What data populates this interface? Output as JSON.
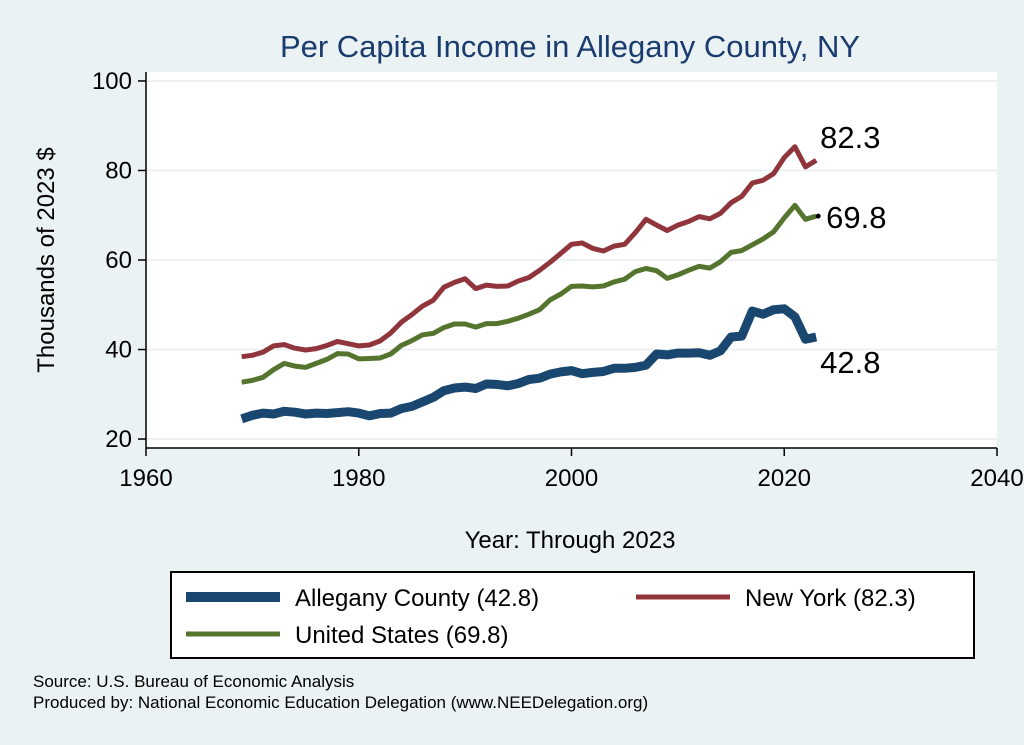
{
  "chart_data": {
    "type": "line",
    "title": "Per Capita Income in Allegany County, NY",
    "xlabel": "Year: Through 2023",
    "ylabel": "Thousands of 2023 $",
    "xlim": [
      1960,
      2040
    ],
    "ylim": [
      18,
      102
    ],
    "x_ticks": [
      1960,
      1980,
      2000,
      2020,
      2040
    ],
    "y_ticks": [
      20,
      40,
      60,
      80,
      100
    ],
    "grid": "horizontal",
    "legend_position": "bottom",
    "x": [
      1969,
      1970,
      1971,
      1972,
      1973,
      1974,
      1975,
      1976,
      1977,
      1978,
      1979,
      1980,
      1981,
      1982,
      1983,
      1984,
      1985,
      1986,
      1987,
      1988,
      1989,
      1990,
      1991,
      1992,
      1993,
      1994,
      1995,
      1996,
      1997,
      1998,
      1999,
      2000,
      2001,
      2002,
      2003,
      2004,
      2005,
      2006,
      2007,
      2008,
      2009,
      2010,
      2011,
      2012,
      2013,
      2014,
      2015,
      2016,
      2017,
      2018,
      2019,
      2020,
      2021,
      2022,
      2023
    ],
    "series": [
      {
        "name": "Allegany County (42.8)",
        "color": "#1a476f",
        "end_label": "42.8",
        "values": [
          24.5,
          25.3,
          25.8,
          25.6,
          26.2,
          26.0,
          25.6,
          25.8,
          25.7,
          25.9,
          26.1,
          25.8,
          25.2,
          25.7,
          25.8,
          26.8,
          27.3,
          28.3,
          29.3,
          30.8,
          31.4,
          31.6,
          31.3,
          32.3,
          32.2,
          31.9,
          32.4,
          33.3,
          33.6,
          34.5,
          35.0,
          35.3,
          34.6,
          34.9,
          35.1,
          35.8,
          35.8,
          36.0,
          36.5,
          39.0,
          38.8,
          39.2,
          39.2,
          39.3,
          38.7,
          39.7,
          42.8,
          43.0,
          48.6,
          47.9,
          48.9,
          49.1,
          47.3,
          42.3,
          42.8
        ]
      },
      {
        "name": "New York (82.3)",
        "color": "#90353b",
        "end_label": "82.3",
        "values": [
          38.4,
          38.7,
          39.4,
          40.8,
          41.1,
          40.3,
          39.9,
          40.2,
          40.9,
          41.8,
          41.3,
          40.8,
          41.0,
          41.9,
          43.7,
          46.1,
          47.8,
          49.7,
          51.0,
          53.9,
          55.0,
          55.8,
          53.6,
          54.4,
          54.1,
          54.2,
          55.3,
          56.1,
          57.7,
          59.5,
          61.5,
          63.5,
          63.8,
          62.6,
          62.0,
          63.1,
          63.5,
          66.1,
          69.1,
          67.8,
          66.6,
          67.8,
          68.6,
          69.7,
          69.2,
          70.4,
          72.8,
          74.2,
          77.2,
          77.8,
          79.3,
          82.9,
          85.3,
          80.8,
          82.3
        ]
      },
      {
        "name": "United States (69.8)",
        "color": "#55752f",
        "end_label": "69.8",
        "values": [
          32.7,
          33.1,
          33.8,
          35.5,
          36.9,
          36.3,
          36.0,
          36.9,
          37.8,
          39.1,
          39.0,
          37.9,
          38.0,
          38.1,
          39.0,
          40.9,
          42.0,
          43.3,
          43.6,
          44.9,
          45.7,
          45.7,
          45.0,
          45.8,
          45.8,
          46.3,
          47.0,
          47.9,
          48.9,
          51.1,
          52.4,
          54.1,
          54.2,
          54.0,
          54.2,
          55.1,
          55.7,
          57.4,
          58.1,
          57.6,
          55.9,
          56.7,
          57.7,
          58.6,
          58.2,
          59.6,
          61.7,
          62.1,
          63.4,
          64.7,
          66.3,
          69.4,
          72.2,
          69.1,
          69.8
        ]
      }
    ]
  },
  "legend": {
    "items": [
      {
        "label": "Allegany County (42.8)",
        "color": "#1a476f"
      },
      {
        "label": "New York (82.3)",
        "color": "#90353b"
      },
      {
        "label": "United States (69.8)",
        "color": "#55752f"
      }
    ]
  },
  "footer": {
    "source": "Source: U.S. Bureau of Economic Analysis",
    "produced_by": "Produced by: National Economic Education Delegation (www.NEEDelegation.org)"
  }
}
